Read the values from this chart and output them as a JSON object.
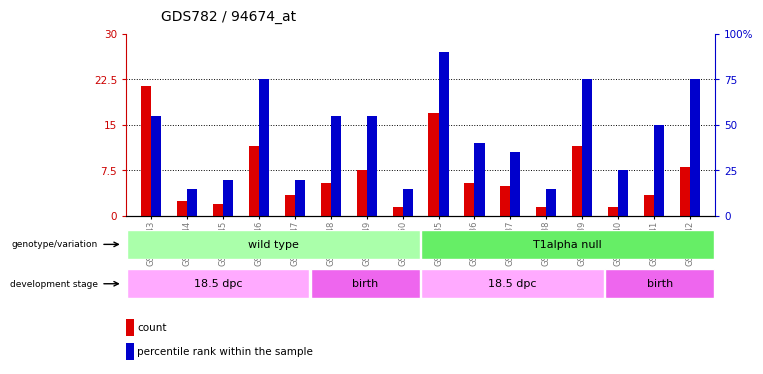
{
  "title": "GDS782 / 94674_at",
  "samples": [
    "GSM22043",
    "GSM22044",
    "GSM22045",
    "GSM22046",
    "GSM22047",
    "GSM22048",
    "GSM22049",
    "GSM22050",
    "GSM22035",
    "GSM22036",
    "GSM22037",
    "GSM22038",
    "GSM22039",
    "GSM22040",
    "GSM22041",
    "GSM22042"
  ],
  "count_values": [
    21.5,
    2.5,
    2.0,
    11.5,
    3.5,
    5.5,
    7.5,
    1.5,
    17.0,
    5.5,
    5.0,
    1.5,
    11.5,
    1.5,
    3.5,
    8.0
  ],
  "percentile_values": [
    16.5,
    4.5,
    6.0,
    22.5,
    6.0,
    16.5,
    16.5,
    4.5,
    27.0,
    12.0,
    10.5,
    4.5,
    22.5,
    7.5,
    15.0,
    22.5
  ],
  "left_yticks": [
    0,
    7.5,
    15,
    22.5,
    30
  ],
  "left_ylabels": [
    "0",
    "7.5",
    "15",
    "22.5",
    "30"
  ],
  "right_yticks": [
    0,
    25,
    50,
    75,
    100
  ],
  "right_ylabels": [
    "0",
    "25",
    "50",
    "75",
    "100%"
  ],
  "ylim": [
    0,
    30
  ],
  "bar_width": 0.28,
  "count_color": "#dd0000",
  "percentile_color": "#0000cc",
  "bg_color": "#ffffff",
  "genotype_label": "genotype/variation",
  "dev_stage_label": "development stage",
  "genotype_groups": [
    {
      "label": "wild type",
      "start": 0,
      "end": 8,
      "color": "#aaffaa"
    },
    {
      "label": "T1alpha null",
      "start": 8,
      "end": 16,
      "color": "#66ee66"
    }
  ],
  "dev_stage_groups": [
    {
      "label": "18.5 dpc",
      "start": 0,
      "end": 5,
      "color": "#ffaaff"
    },
    {
      "label": "birth",
      "start": 5,
      "end": 8,
      "color": "#ee66ee"
    },
    {
      "label": "18.5 dpc",
      "start": 8,
      "end": 13,
      "color": "#ffaaff"
    },
    {
      "label": "birth",
      "start": 13,
      "end": 16,
      "color": "#ee66ee"
    }
  ],
  "legend_count_label": "count",
  "legend_pct_label": "percentile rank within the sample",
  "left_axis_color": "#cc0000",
  "right_axis_color": "#0000cc"
}
